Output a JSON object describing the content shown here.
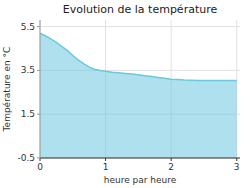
{
  "chart_data": {
    "type": "area",
    "title": "Evolution de la température",
    "x_label": "heure par heure",
    "y_label": "Température en °C",
    "x": [
      0,
      0.08,
      0.17,
      0.25,
      0.33,
      0.42,
      0.5,
      0.58,
      0.67,
      0.75,
      0.83,
      0.92,
      1.0,
      1.1,
      1.2,
      1.3,
      1.4,
      1.5,
      1.6,
      1.7,
      1.8,
      1.9,
      2.0,
      2.1,
      2.2,
      2.3,
      2.4,
      2.5,
      2.6,
      2.7,
      2.8,
      2.9,
      3.0
    ],
    "values": [
      5.2,
      5.08,
      4.93,
      4.78,
      4.6,
      4.4,
      4.18,
      3.98,
      3.8,
      3.65,
      3.55,
      3.49,
      3.46,
      3.42,
      3.39,
      3.36,
      3.33,
      3.3,
      3.26,
      3.22,
      3.18,
      3.14,
      3.1,
      3.08,
      3.06,
      3.05,
      3.04,
      3.04,
      3.04,
      3.04,
      3.04,
      3.04,
      3.04
    ],
    "color": "#6cc8de",
    "xlim": [
      0,
      3.05
    ],
    "ylim": [
      -0.5,
      5.8
    ],
    "xticks": [
      0,
      1,
      2,
      3
    ],
    "yticks": [
      -0.5,
      1.5,
      3.5,
      5.5
    ],
    "grid": true
  }
}
